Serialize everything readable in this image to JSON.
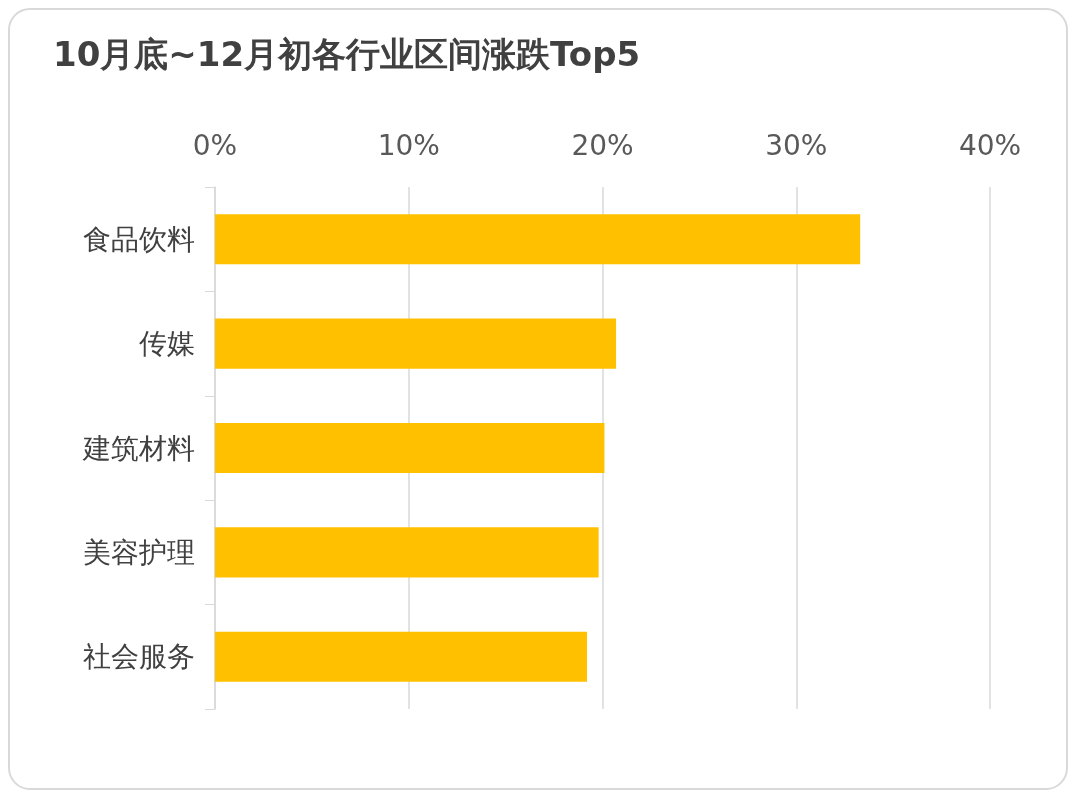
{
  "chart_data": {
    "type": "bar",
    "orientation": "horizontal",
    "title": "10月底~12月初各行业区间涨跌Top5",
    "categories": [
      "食品饮料",
      "传媒",
      "建筑材料",
      "美容护理",
      "社会服务"
    ],
    "values": [
      33.3,
      20.7,
      20.1,
      19.8,
      19.2
    ],
    "color": "#ffc000",
    "xlim": [
      0,
      40
    ],
    "xticks": [
      {
        "value": 0,
        "label": "0%"
      },
      {
        "value": 10,
        "label": "10%"
      },
      {
        "value": 20,
        "label": "20%"
      },
      {
        "value": 30,
        "label": "30%"
      },
      {
        "value": 40,
        "label": "40%"
      }
    ],
    "grid": "x"
  }
}
